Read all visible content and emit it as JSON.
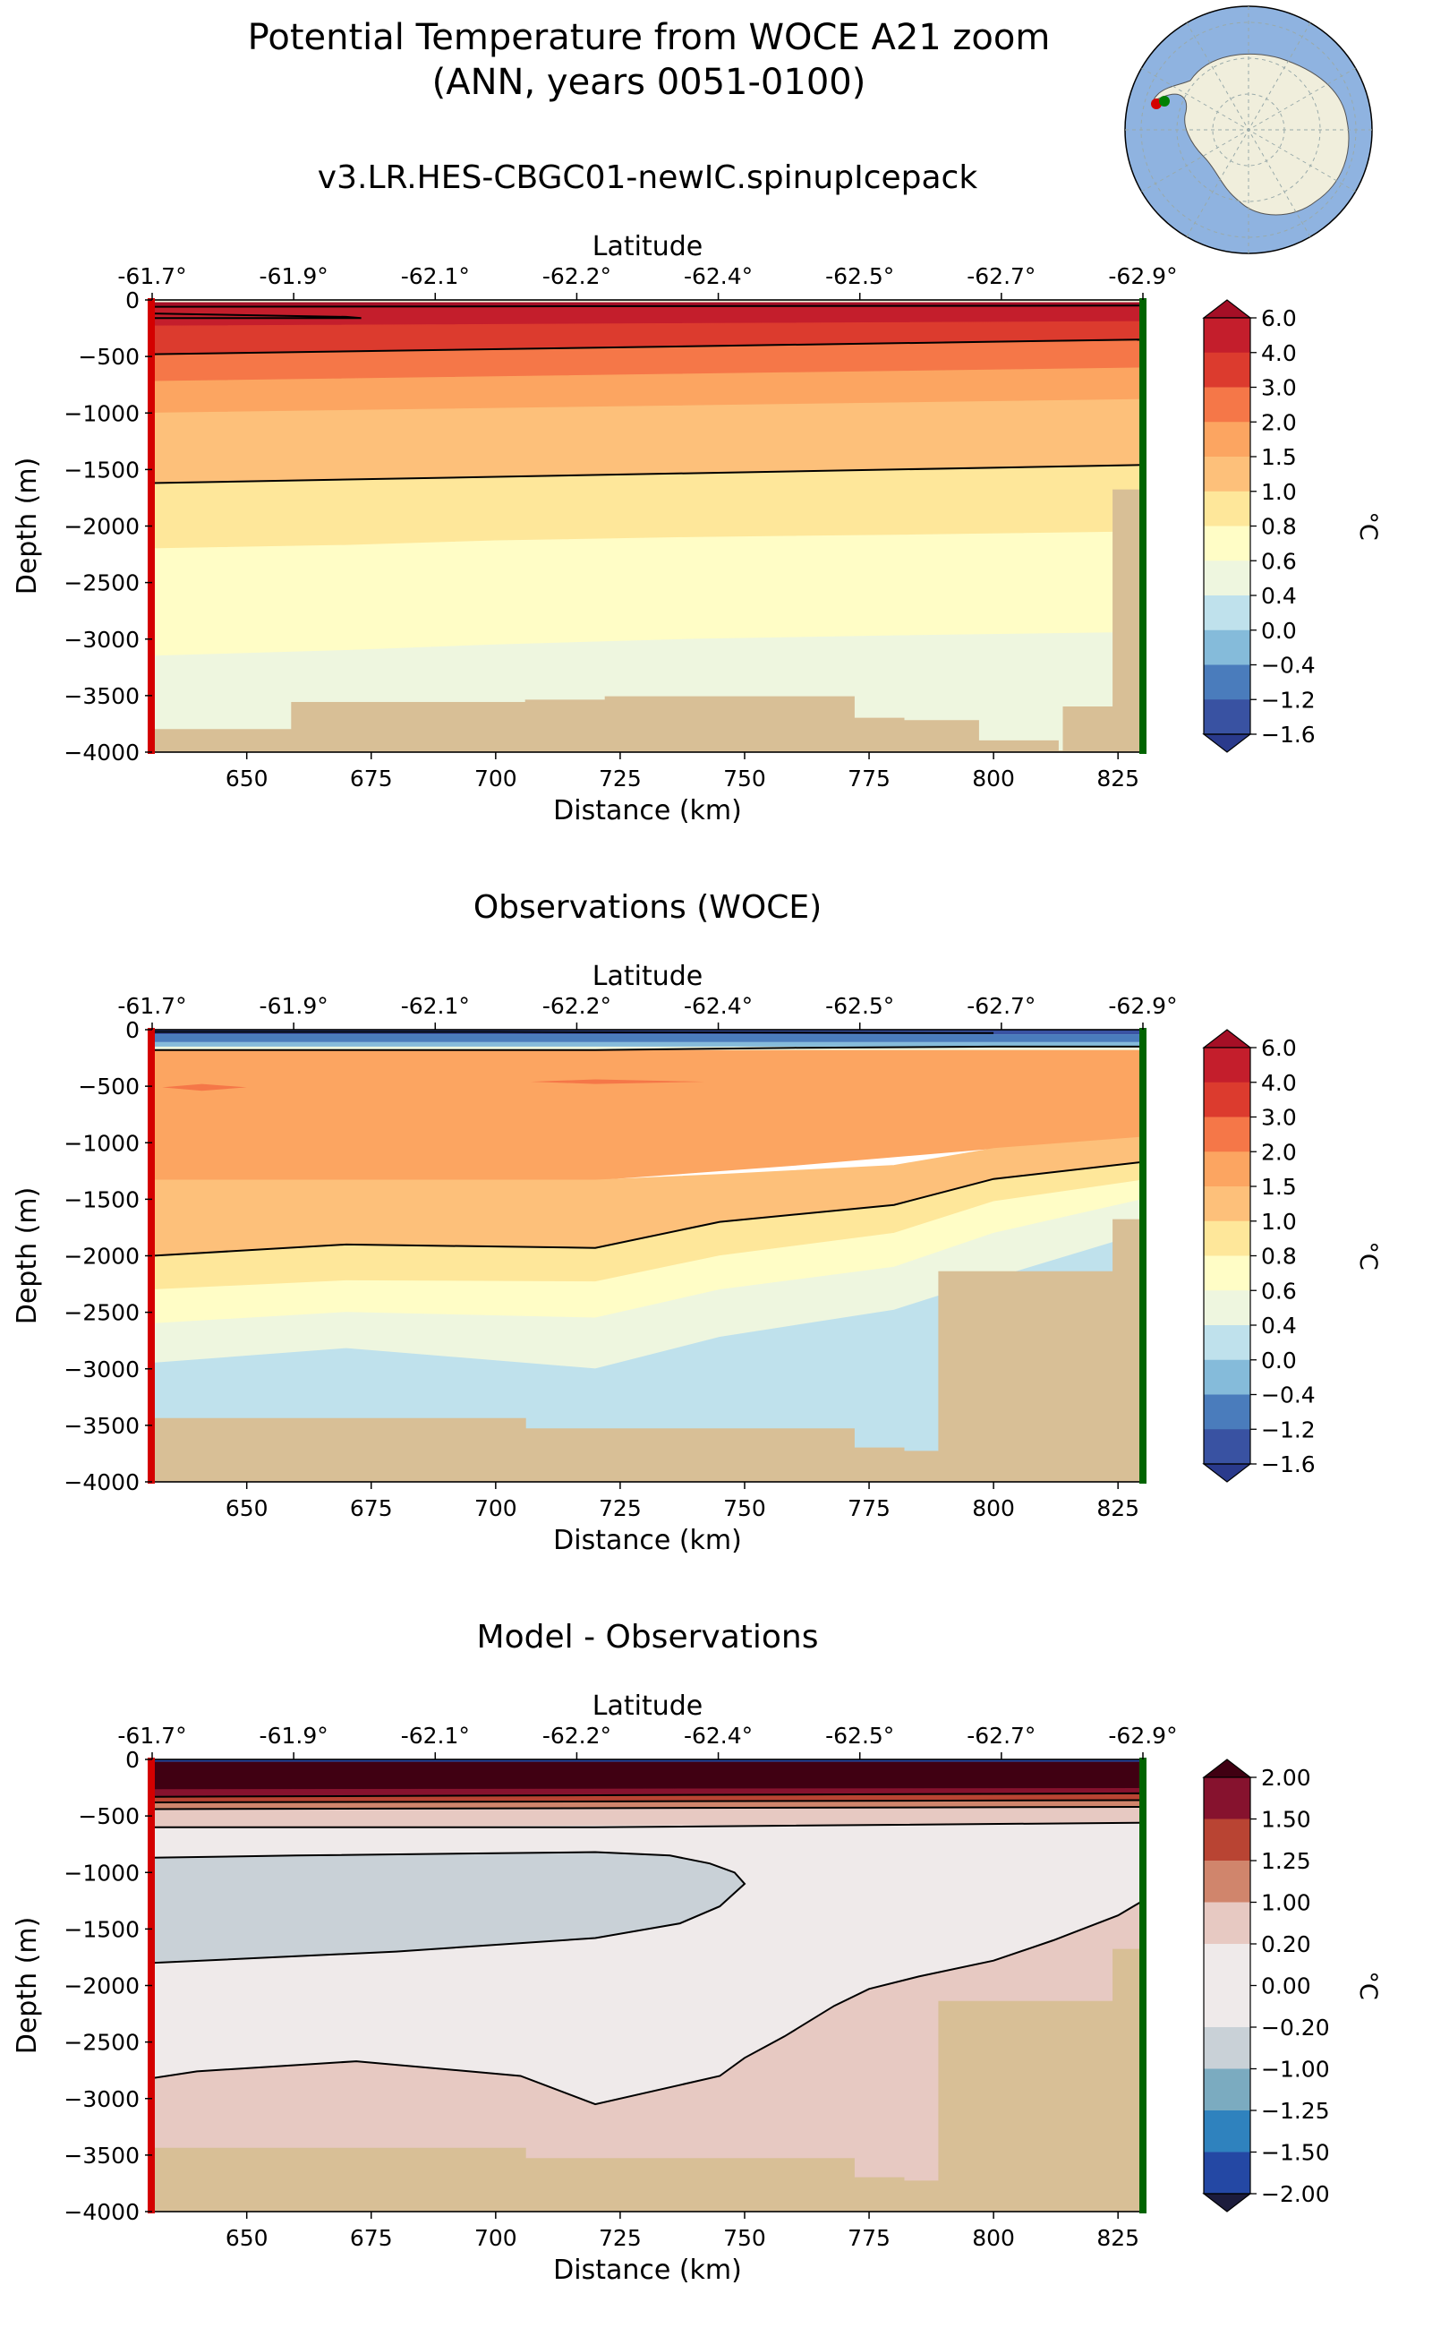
{
  "figure": {
    "title_line1": "Potential Temperature from WOCE A21 zoom",
    "title_line2": "(ANN, years 0051-0100)",
    "colors": {
      "land": "#D8BF96",
      "ocean_map": "#8FB3E0",
      "antarctica": "#F0EEDC",
      "left_marker": "#D40000",
      "right_marker": "#006400"
    }
  },
  "chart_data": [
    {
      "type": "heatmap",
      "title": "v3.LR.HES-CBGC01-newIC.spinupIcepack",
      "xlabel": "Distance (km)",
      "ylabel": "Depth (m)",
      "top_axis_label": "Latitude",
      "xlim": [
        631,
        830
      ],
      "ylim": [
        -4000,
        0
      ],
      "x_ticks": [
        650,
        675,
        700,
        725,
        750,
        775,
        800,
        825
      ],
      "y_ticks": [
        0,
        -500,
        -1000,
        -1500,
        -2000,
        -2500,
        -3000,
        -3500,
        -4000
      ],
      "lat_ticks": [
        "-61.7°",
        "-61.9°",
        "-62.1°",
        "-62.2°",
        "-62.4°",
        "-62.5°",
        "-62.7°",
        "-62.9°"
      ],
      "colorbar": {
        "label": "°C",
        "tick_labels": [
          "6.0",
          "4.0",
          "3.0",
          "2.0",
          "1.5",
          "1.0",
          "0.8",
          "0.6",
          "0.4",
          "0.0",
          "−0.4",
          "−1.2",
          "−1.6"
        ]
      },
      "layers": [
        {
          "value": 4.0,
          "x": [
            631,
            830
          ],
          "top": [
            -50,
            -50
          ],
          "bottom": [
            -230,
            -190
          ]
        },
        {
          "value": 3.0,
          "x": [
            631,
            830
          ],
          "top": [
            -230,
            -190
          ],
          "bottom": [
            -480,
            -360
          ]
        },
        {
          "value": 2.0,
          "x": [
            631,
            830
          ],
          "top": [
            -480,
            -360
          ],
          "bottom": [
            -720,
            -600
          ]
        },
        {
          "value": 1.5,
          "x": [
            631,
            830
          ],
          "top": [
            -720,
            -600
          ],
          "bottom": [
            -1000,
            -880
          ]
        },
        {
          "value": 1.0,
          "x": [
            631,
            830
          ],
          "top": [
            -1000,
            -880
          ],
          "bottom": [
            -1620,
            -1460
          ]
        },
        {
          "value": 0.8,
          "x": [
            631,
            830
          ],
          "top": [
            -1620,
            -1460
          ],
          "bottom": [
            -2200,
            -2050
          ]
        },
        {
          "value": 0.6,
          "x": [
            631,
            670,
            700,
            740,
            780,
            830
          ],
          "top": [
            -2200,
            -2170,
            -2130,
            -2100,
            -2080,
            -2050
          ],
          "bottom": [
            -3150,
            -3100,
            -3050,
            -3000,
            -2970,
            -2940
          ]
        },
        {
          "value": 0.4,
          "x": [
            631,
            670,
            700,
            740,
            780,
            830
          ],
          "top": [
            -3150,
            -3100,
            -3050,
            -3000,
            -2970,
            -2940
          ],
          "bottom": [
            -4000,
            -4000,
            -4000,
            -4000,
            -4000,
            -4000
          ]
        }
      ],
      "surface_bands": [
        {
          "value": 0.4,
          "top": 0,
          "bottom": -20
        },
        {
          "value": 6.0,
          "top": -20,
          "bottom": -50
        }
      ],
      "contours": [
        {
          "x": [
            631,
            830
          ],
          "y": [
            -480,
            -350
          ]
        },
        {
          "x": [
            631,
            830
          ],
          "y": [
            -1620,
            -1460
          ]
        },
        {
          "x": [
            631,
            670,
            673,
            631
          ],
          "y": [
            -120,
            -150,
            -160,
            -160
          ]
        },
        {
          "x": [
            631,
            830
          ],
          "y": [
            -60,
            -50
          ]
        }
      ],
      "bathymetry": {
        "x": [
          631,
          659,
          659,
          706,
          706,
          722,
          722,
          772,
          772,
          782,
          782,
          797,
          797,
          813,
          813,
          814,
          814,
          824,
          824,
          830
        ],
        "y": [
          -3800,
          -3800,
          -3560,
          -3560,
          -3540,
          -3540,
          -3510,
          -3510,
          -3700,
          -3700,
          -3720,
          -3720,
          -3900,
          -3900,
          -3990,
          -3990,
          -3600,
          -3600,
          -1680,
          -1680
        ]
      }
    },
    {
      "type": "heatmap",
      "title": "Observations (WOCE)",
      "xlabel": "Distance (km)",
      "ylabel": "Depth (m)",
      "top_axis_label": "Latitude",
      "xlim": [
        631,
        830
      ],
      "ylim": [
        -4000,
        0
      ],
      "x_ticks": [
        650,
        675,
        700,
        725,
        750,
        775,
        800,
        825
      ],
      "y_ticks": [
        0,
        -500,
        -1000,
        -1500,
        -2000,
        -2500,
        -3000,
        -3500,
        -4000
      ],
      "lat_ticks": [
        "-61.7°",
        "-61.9°",
        "-62.1°",
        "-62.2°",
        "-62.4°",
        "-62.5°",
        "-62.7°",
        "-62.9°"
      ],
      "colorbar": {
        "label": "°C",
        "tick_labels": [
          "6.0",
          "4.0",
          "3.0",
          "2.0",
          "1.5",
          "1.0",
          "0.8",
          "0.6",
          "0.4",
          "0.0",
          "−0.4",
          "−1.2",
          "−1.6"
        ]
      },
      "layers": [
        {
          "value": 1.5,
          "x": [
            631,
            680,
            720,
            760,
            800,
            830
          ],
          "top": [
            -180,
            -180,
            -180,
            -160,
            -150,
            -150
          ],
          "bottom": [
            -1330,
            -1330,
            -1330,
            -1200,
            -1050,
            -950
          ]
        },
        {
          "value": 1.0,
          "x": [
            631,
            670,
            720,
            745,
            780,
            800,
            830
          ],
          "top": [
            -1330,
            -1330,
            -1330,
            -1280,
            -1200,
            -1050,
            -950
          ],
          "bottom": [
            -2000,
            -1900,
            -1930,
            -1700,
            -1550,
            -1320,
            -1170
          ]
        },
        {
          "value": 0.8,
          "x": [
            631,
            670,
            720,
            745,
            780,
            800,
            830
          ],
          "top": [
            -2000,
            -1900,
            -1930,
            -1700,
            -1550,
            -1320,
            -1170
          ],
          "bottom": [
            -2300,
            -2220,
            -2230,
            -2000,
            -1800,
            -1520,
            -1330
          ]
        },
        {
          "value": 0.6,
          "x": [
            631,
            670,
            720,
            745,
            780,
            800,
            830
          ],
          "top": [
            -2300,
            -2220,
            -2230,
            -2000,
            -1800,
            -1520,
            -1330
          ],
          "bottom": [
            -2600,
            -2500,
            -2550,
            -2300,
            -2100,
            -1800,
            -1500
          ]
        },
        {
          "value": 0.4,
          "x": [
            631,
            670,
            720,
            745,
            780,
            800,
            830
          ],
          "top": [
            -2600,
            -2500,
            -2550,
            -2300,
            -2100,
            -1800,
            -1500
          ],
          "bottom": [
            -2950,
            -2820,
            -3000,
            -2720,
            -2480,
            -2200,
            -1800
          ]
        },
        {
          "value": 0.0,
          "x": [
            631,
            670,
            720,
            745,
            780,
            800,
            830
          ],
          "top": [
            -2950,
            -2820,
            -3000,
            -2720,
            -2480,
            -2200,
            -1800
          ],
          "bottom": [
            -4000,
            -4000,
            -4000,
            -4000,
            -4000,
            -4000,
            -4000
          ]
        }
      ],
      "surface_bands": [
        {
          "value": -1.6,
          "top": 0,
          "bottom": -40
        },
        {
          "value": -1.2,
          "top": -40,
          "bottom": -110
        },
        {
          "value": -0.4,
          "top": -110,
          "bottom": -150
        },
        {
          "value": 0.4,
          "top": -150,
          "bottom": -180
        }
      ],
      "blobs": [
        {
          "value": 2.0,
          "x": [
            633,
            641,
            650,
            641
          ],
          "y": [
            -510,
            -480,
            -510,
            -540
          ]
        },
        {
          "value": 2.0,
          "x": [
            707,
            720,
            742,
            720
          ],
          "y": [
            -460,
            -440,
            -460,
            -480
          ]
        }
      ],
      "contours": [
        {
          "x": [
            631,
            680,
            720,
            760,
            800,
            830
          ],
          "y": [
            -180,
            -180,
            -180,
            -160,
            -150,
            -150
          ]
        },
        {
          "x": [
            631,
            670,
            720,
            745,
            780,
            800,
            830
          ],
          "y": [
            -2000,
            -1900,
            -1930,
            -1700,
            -1550,
            -1320,
            -1170
          ]
        },
        {
          "x": [
            631,
            700,
            800
          ],
          "y": [
            -20,
            -20,
            -30
          ]
        }
      ],
      "bathymetry": {
        "x": [
          631,
          706,
          706,
          772,
          772,
          782,
          782,
          789,
          789,
          824,
          824,
          830
        ],
        "y": [
          -3440,
          -3440,
          -3530,
          -3530,
          -3700,
          -3700,
          -3730,
          -3730,
          -2140,
          -2140,
          -1680,
          -1680
        ]
      }
    },
    {
      "type": "heatmap",
      "title": "Model - Observations",
      "xlabel": "Distance (km)",
      "ylabel": "Depth (m)",
      "top_axis_label": "Latitude",
      "xlim": [
        631,
        830
      ],
      "ylim": [
        -4000,
        0
      ],
      "x_ticks": [
        650,
        675,
        700,
        725,
        750,
        775,
        800,
        825
      ],
      "y_ticks": [
        0,
        -500,
        -1000,
        -1500,
        -2000,
        -2500,
        -3000,
        -3500,
        -4000
      ],
      "lat_ticks": [
        "-61.7°",
        "-61.9°",
        "-62.1°",
        "-62.2°",
        "-62.4°",
        "-62.5°",
        "-62.7°",
        "-62.9°"
      ],
      "colorbar": {
        "label": "°C",
        "tick_labels": [
          "2.00",
          "1.50",
          "1.25",
          "1.00",
          "0.20",
          "0.00",
          "−0.20",
          "−1.00",
          "−1.25",
          "−1.50",
          "−2.00"
        ]
      },
      "layers": [
        {
          "value": 0.1,
          "x": [
            631,
            830
          ],
          "top": [
            -600,
            -560
          ],
          "bottom": [
            -4000,
            -4000
          ]
        },
        {
          "value": 0.6,
          "x": [
            631,
            830
          ],
          "top": [
            -440,
            -420
          ],
          "bottom": [
            -600,
            -560
          ]
        },
        {
          "value": 1.1,
          "x": [
            631,
            830
          ],
          "top": [
            -380,
            -360
          ],
          "bottom": [
            -440,
            -420
          ]
        },
        {
          "value": 1.4,
          "x": [
            631,
            830
          ],
          "top": [
            -330,
            -300
          ],
          "bottom": [
            -380,
            -360
          ]
        },
        {
          "value": 1.7,
          "x": [
            631,
            830
          ],
          "top": [
            -260,
            -250
          ],
          "bottom": [
            -330,
            -300
          ]
        },
        {
          "value": 2.2,
          "x": [
            631,
            830
          ],
          "top": [
            -20,
            -20
          ],
          "bottom": [
            -260,
            -250
          ]
        }
      ],
      "regions": [
        {
          "value": 0.6,
          "x": [
            631,
            640,
            672,
            705,
            720,
            745,
            750,
            758,
            768,
            775,
            785,
            800,
            812,
            825,
            830,
            830,
            631
          ],
          "y": [
            -2820,
            -2760,
            -2670,
            -2800,
            -3050,
            -2800,
            -2640,
            -2450,
            -2180,
            -2030,
            -1920,
            -1780,
            -1600,
            -1380,
            -1250,
            -4000,
            -4000
          ]
        },
        {
          "value": -0.6,
          "x": [
            631,
            660,
            720,
            735,
            743,
            748,
            750,
            745,
            737,
            720,
            680,
            631
          ],
          "y": [
            -870,
            -850,
            -820,
            -850,
            -920,
            -1000,
            -1100,
            -1300,
            -1450,
            -1580,
            -1700,
            -1800
          ]
        }
      ],
      "surface_bands": [
        {
          "value": -1.7,
          "top": 0,
          "bottom": -20
        }
      ],
      "contours": [
        {
          "x": [
            631,
            660,
            720,
            735,
            743,
            748,
            750,
            745,
            737,
            720,
            680,
            631
          ],
          "y": [
            -870,
            -850,
            -820,
            -850,
            -920,
            -1000,
            -1100,
            -1300,
            -1450,
            -1580,
            -1700,
            -1800
          ]
        },
        {
          "x": [
            631,
            640,
            672,
            705,
            720,
            745,
            750,
            758,
            768,
            775,
            785,
            800,
            812,
            825,
            830
          ],
          "y": [
            -2820,
            -2760,
            -2670,
            -2800,
            -3050,
            -2800,
            -2640,
            -2450,
            -2180,
            -2030,
            -1920,
            -1780,
            -1600,
            -1380,
            -1250
          ]
        },
        {
          "x": [
            631,
            720,
            830
          ],
          "y": [
            -600,
            -600,
            -560
          ]
        },
        {
          "x": [
            631,
            830
          ],
          "y": [
            -440,
            -420
          ]
        },
        {
          "x": [
            631,
            830
          ],
          "y": [
            -380,
            -360
          ]
        },
        {
          "x": [
            631,
            830
          ],
          "y": [
            -330,
            -300
          ]
        }
      ],
      "bathymetry": {
        "x": [
          631,
          706,
          706,
          772,
          772,
          782,
          782,
          789,
          789,
          824,
          824,
          830
        ],
        "y": [
          -3440,
          -3440,
          -3530,
          -3530,
          -3700,
          -3700,
          -3730,
          -3730,
          -2140,
          -2140,
          -1680,
          -1680
        ]
      }
    }
  ]
}
